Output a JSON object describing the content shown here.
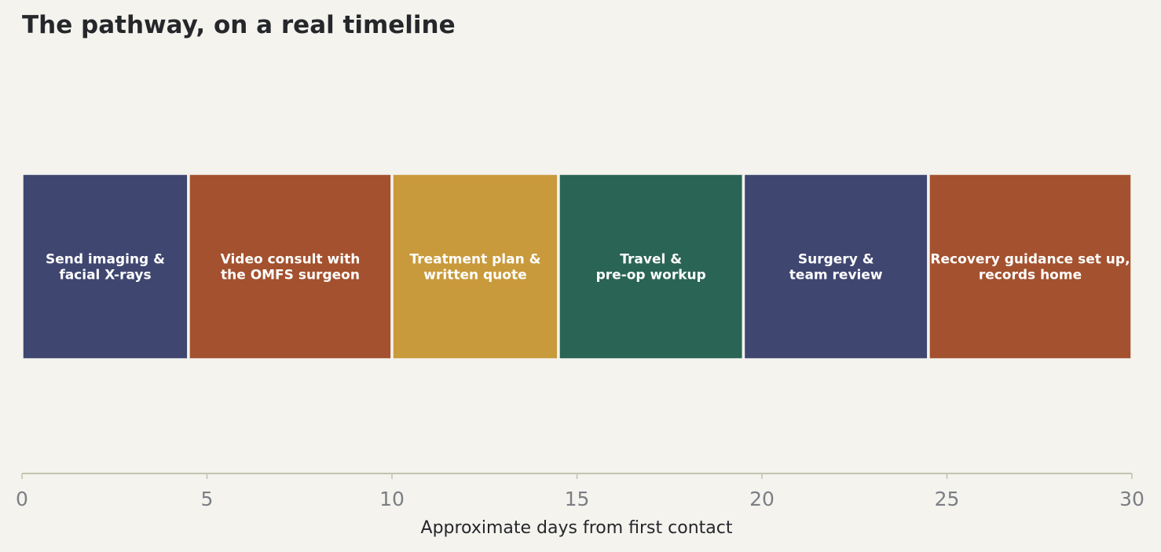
{
  "chart_data": {
    "type": "bar",
    "orientation": "horizontal-timeline",
    "title": "The pathway, on a real timeline",
    "xlabel": "Approximate days from first contact",
    "ylabel": "",
    "xlim": [
      0,
      30
    ],
    "xticks": [
      0,
      5,
      10,
      15,
      20,
      25,
      30
    ],
    "grid": false,
    "segments": [
      {
        "label": "Send imaging &\nfacial X-rays",
        "start": 0,
        "end": 4.5,
        "color": "#3f4670"
      },
      {
        "label": "Video consult with\nthe OMFS surgeon",
        "start": 4.5,
        "end": 10,
        "color": "#a3512e"
      },
      {
        "label": "Treatment plan &\nwritten quote",
        "start": 10,
        "end": 14.5,
        "color": "#c99a3b"
      },
      {
        "label": "Travel &\npre-op workup",
        "start": 14.5,
        "end": 19.5,
        "color": "#2a6454"
      },
      {
        "label": "Surgery &\nteam review",
        "start": 19.5,
        "end": 24.5,
        "color": "#3f4670"
      },
      {
        "label": "Recovery guidance set up,\nrecords home",
        "start": 24.5,
        "end": 30,
        "color": "#a3512e"
      }
    ]
  },
  "colors": {
    "background": "#f4f3ee",
    "axis_line": "#c4c4b0",
    "tick_text": "#7b7f84",
    "title_text": "#25272b"
  }
}
